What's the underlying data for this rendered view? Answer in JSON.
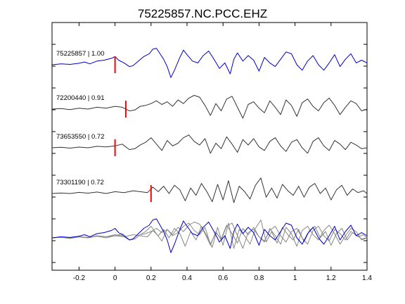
{
  "chart_data": {
    "type": "line",
    "title": "75225857.NC.PCC.EHZ",
    "xlabel": "",
    "ylabel": "",
    "xlim": [
      -0.35,
      1.4
    ],
    "x_ticks": [
      {
        "value": -0.2,
        "label": "-0.2"
      },
      {
        "value": 0,
        "label": "0"
      },
      {
        "value": 0.2,
        "label": "0.2"
      },
      {
        "value": 0.4,
        "label": "0.4"
      },
      {
        "value": 0.6,
        "label": "0.6"
      },
      {
        "value": 0.8,
        "label": "0.8"
      },
      {
        "value": 1.0,
        "label": "1"
      },
      {
        "value": 1.2,
        "label": "1.2"
      },
      {
        "value": 1.4,
        "label": "1.4"
      }
    ],
    "grid": false,
    "legend": "none",
    "colors": {
      "main_trace": "#0000cc",
      "matched_trace": "#333333",
      "overlay_trace": "#888888",
      "pick_marker": "#ff0000",
      "axes": "#000000"
    },
    "series": [
      {
        "label": "75225857 | 1.00",
        "color": "#0000cc",
        "pick": 0.0,
        "x": [
          -0.35,
          -0.3,
          -0.25,
          -0.2,
          -0.17,
          -0.14,
          -0.1,
          -0.06,
          -0.02,
          0.0,
          0.02,
          0.05,
          0.08,
          0.1,
          0.13,
          0.16,
          0.19,
          0.21,
          0.23,
          0.25,
          0.27,
          0.29,
          0.31,
          0.33,
          0.36,
          0.38,
          0.4,
          0.43,
          0.46,
          0.49,
          0.52,
          0.55,
          0.58,
          0.61,
          0.64,
          0.66,
          0.68,
          0.71,
          0.74,
          0.77,
          0.8,
          0.83,
          0.86,
          0.89,
          0.92,
          0.95,
          0.98,
          1.01,
          1.04,
          1.07,
          1.1,
          1.13,
          1.16,
          1.19,
          1.22,
          1.25,
          1.28,
          1.31,
          1.34,
          1.37,
          1.4
        ],
        "y": [
          0.0,
          0.05,
          0.02,
          0.08,
          0.15,
          0.05,
          0.2,
          0.25,
          0.35,
          0.45,
          0.25,
          0.1,
          -0.1,
          -0.05,
          0.2,
          0.45,
          0.6,
          0.85,
          0.9,
          0.6,
          0.3,
          -0.1,
          -0.7,
          -0.3,
          0.4,
          0.8,
          0.55,
          0.2,
          0.1,
          0.5,
          0.75,
          0.3,
          -0.2,
          0.1,
          -0.5,
          0.3,
          0.65,
          0.2,
          0.5,
          0.25,
          -0.35,
          0.4,
          0.1,
          -0.1,
          0.3,
          0.7,
          0.6,
          0.0,
          -0.3,
          0.2,
          0.5,
          0.0,
          -0.3,
          0.1,
          0.55,
          -0.1,
          0.3,
          0.6,
          0.1,
          0.25,
          0.1
        ]
      },
      {
        "label": "72200440 | 0.91",
        "color": "#333333",
        "pick": 0.06,
        "x": [
          -0.35,
          -0.3,
          -0.25,
          -0.2,
          -0.15,
          -0.1,
          -0.05,
          0.0,
          0.04,
          0.08,
          0.11,
          0.14,
          0.17,
          0.2,
          0.23,
          0.26,
          0.29,
          0.32,
          0.35,
          0.38,
          0.41,
          0.44,
          0.47,
          0.5,
          0.53,
          0.56,
          0.59,
          0.62,
          0.65,
          0.68,
          0.71,
          0.74,
          0.77,
          0.8,
          0.83,
          0.86,
          0.89,
          0.92,
          0.95,
          0.98,
          1.01,
          1.04,
          1.07,
          1.1,
          1.13,
          1.16,
          1.19,
          1.22,
          1.25,
          1.28,
          1.31,
          1.34,
          1.37,
          1.4
        ],
        "y": [
          0.0,
          0.03,
          -0.03,
          0.05,
          0.0,
          0.1,
          0.05,
          0.15,
          0.1,
          -0.1,
          -0.05,
          0.15,
          0.2,
          0.3,
          0.45,
          0.25,
          0.4,
          0.15,
          0.5,
          0.3,
          0.6,
          0.75,
          0.65,
          0.2,
          -0.35,
          0.3,
          -0.1,
          0.55,
          0.7,
          0.1,
          -0.5,
          0.25,
          0.4,
          0.05,
          -0.2,
          0.45,
          0.1,
          -0.3,
          0.5,
          0.2,
          -0.4,
          0.35,
          0.55,
          0.15,
          -0.1,
          0.35,
          0.6,
          0.2,
          -0.3,
          0.1,
          0.45,
          0.3,
          -0.1,
          0.0
        ]
      },
      {
        "label": "73653550 | 0.72",
        "color": "#333333",
        "pick": 0.0,
        "x": [
          -0.35,
          -0.3,
          -0.25,
          -0.2,
          -0.15,
          -0.1,
          -0.05,
          0.0,
          0.04,
          0.08,
          0.11,
          0.14,
          0.17,
          0.2,
          0.23,
          0.26,
          0.29,
          0.32,
          0.35,
          0.38,
          0.41,
          0.44,
          0.47,
          0.5,
          0.53,
          0.56,
          0.59,
          0.62,
          0.65,
          0.68,
          0.71,
          0.74,
          0.77,
          0.8,
          0.83,
          0.86,
          0.89,
          0.92,
          0.95,
          0.98,
          1.01,
          1.04,
          1.07,
          1.1,
          1.13,
          1.16,
          1.19,
          1.22,
          1.25,
          1.28,
          1.31,
          1.34,
          1.37,
          1.4
        ],
        "y": [
          0.0,
          0.03,
          -0.02,
          0.04,
          0.0,
          0.08,
          0.05,
          0.1,
          0.2,
          -0.1,
          -0.05,
          0.15,
          0.3,
          0.55,
          0.2,
          -0.15,
          0.4,
          0.1,
          0.25,
          0.55,
          0.7,
          0.35,
          0.15,
          0.5,
          -0.3,
          0.25,
          -0.05,
          0.6,
          0.2,
          -0.25,
          0.45,
          0.15,
          0.5,
          0.05,
          -0.15,
          0.35,
          0.55,
          0.1,
          -0.2,
          0.3,
          0.45,
          0.0,
          -0.3,
          0.35,
          0.55,
          0.1,
          -0.15,
          0.4,
          0.2,
          -0.1,
          0.3,
          0.15,
          -0.05,
          0.0
        ]
      },
      {
        "label": "73301190 | 0.72",
        "color": "#333333",
        "pick": 0.2,
        "x": [
          -0.35,
          -0.3,
          -0.25,
          -0.2,
          -0.15,
          -0.1,
          -0.05,
          0.0,
          0.05,
          0.1,
          0.14,
          0.18,
          0.21,
          0.24,
          0.27,
          0.3,
          0.33,
          0.36,
          0.39,
          0.42,
          0.45,
          0.48,
          0.51,
          0.54,
          0.57,
          0.6,
          0.63,
          0.66,
          0.69,
          0.72,
          0.75,
          0.78,
          0.81,
          0.84,
          0.87,
          0.9,
          0.93,
          0.96,
          0.99,
          1.02,
          1.05,
          1.08,
          1.11,
          1.14,
          1.17,
          1.2,
          1.23,
          1.26,
          1.29,
          1.32,
          1.35,
          1.38,
          1.4
        ],
        "y": [
          0.0,
          0.03,
          0.0,
          0.06,
          0.02,
          0.08,
          0.0,
          0.1,
          0.05,
          0.15,
          0.1,
          0.05,
          0.35,
          0.1,
          0.4,
          0.0,
          0.45,
          0.2,
          -0.4,
          0.3,
          -0.1,
          0.55,
          0.1,
          -0.45,
          0.5,
          -0.35,
          0.7,
          -0.5,
          0.4,
          0.1,
          -0.3,
          0.45,
          0.85,
          -0.2,
          0.3,
          -0.25,
          0.5,
          0.15,
          -0.1,
          0.4,
          -0.2,
          0.35,
          0.55,
          0.0,
          0.3,
          -0.35,
          0.2,
          0.45,
          -0.1,
          0.25,
          0.05,
          0.15,
          0.0
        ]
      }
    ]
  }
}
